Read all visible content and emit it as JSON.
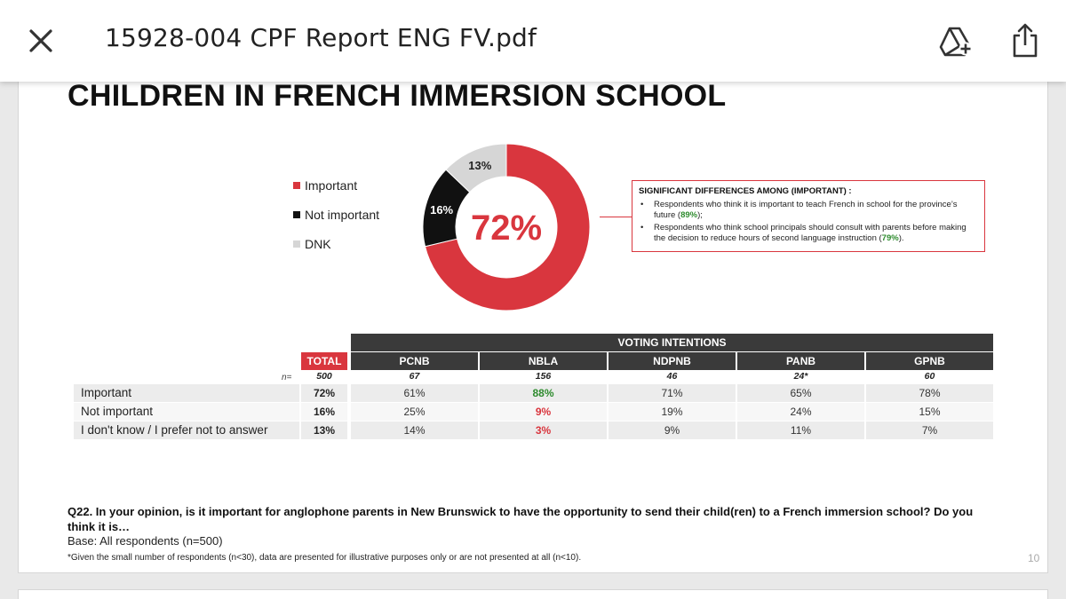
{
  "viewer": {
    "file_name": "15928-004 CPF Report ENG FV.pdf",
    "icons": {
      "close": "close-icon",
      "drive": "add-to-drive-icon",
      "share": "share-icon"
    }
  },
  "slide": {
    "title": "CHILDREN IN FRENCH IMMERSION SCHOOL",
    "legend": [
      {
        "label": "Important",
        "color": "#d9363e"
      },
      {
        "label": "Not important",
        "color": "#111111"
      },
      {
        "label": "DNK",
        "color": "#d6d6d6"
      }
    ],
    "differences": {
      "title": "SIGNIFICANT DIFFERENCES AMONG (IMPORTANT) :",
      "items": [
        {
          "pre": "Respondents who think it is important to teach French in school for the province’s future (",
          "value": "89%",
          "post": ");"
        },
        {
          "pre": "Respondents who think school principals should consult with parents before making the decision to reduce hours of second language instruction (",
          "value": "79%",
          "post": ")."
        }
      ]
    },
    "table": {
      "group_header": "VOTING INTENTIONS",
      "total_header": "TOTAL",
      "columns": [
        "PCNB",
        "NBLA",
        "NDPNB",
        "PANB",
        "GPNB"
      ],
      "n_label": "n=",
      "n_total": "500",
      "n_values": [
        "67",
        "156",
        "46",
        "24*",
        "60"
      ],
      "rows": [
        {
          "label": "Important",
          "total": "72%",
          "values": [
            "61%",
            "88%",
            "71%",
            "65%",
            "78%"
          ]
        },
        {
          "label": "Not important",
          "total": "16%",
          "values": [
            "25%",
            "9%",
            "19%",
            "24%",
            "15%"
          ]
        },
        {
          "label": "I don't know / I prefer not to answer",
          "total": "13%",
          "values": [
            "14%",
            "3%",
            "9%",
            "11%",
            "7%"
          ]
        }
      ]
    },
    "question": "Q22. In your opinion, is it important for anglophone parents in New Brunswick to have the opportunity to send their child(ren) to a French immersion school? Do you think it is…",
    "base": "Base: All respondents (n=500)",
    "footnote": "*Given the small number of respondents (n<30), data are presented for illustrative purposes only or are not presented at all (n<10).",
    "page_number": "10"
  },
  "chart_data": {
    "type": "pie",
    "title": "",
    "center_label": "72%",
    "categories": [
      "Important",
      "Not important",
      "DNK"
    ],
    "values": [
      72,
      16,
      13
    ],
    "value_labels": [
      "",
      "16%",
      "13%"
    ],
    "colors": [
      "#d9363e",
      "#111111",
      "#d6d6d6"
    ],
    "legend": "left"
  }
}
